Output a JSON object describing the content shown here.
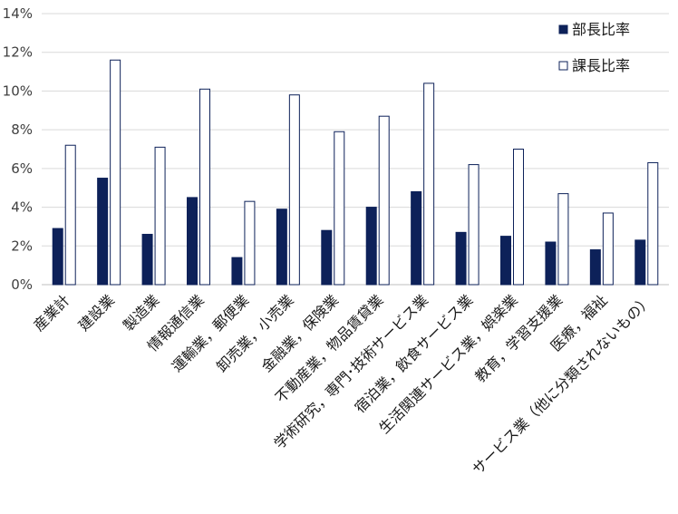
{
  "chart_data": {
    "type": "bar",
    "title": "",
    "xlabel": "",
    "ylabel": "",
    "ylim": [
      0,
      14
    ],
    "yticks": [
      "0%",
      "2%",
      "4%",
      "6%",
      "8%",
      "10%",
      "12%",
      "14%"
    ],
    "grid": true,
    "legend_position": "top-right",
    "categories": [
      "産業計",
      "建設業",
      "製造業",
      "情報通信業",
      "運輸業，郵便業",
      "卸売業，小売業",
      "金融業，保険業",
      "不動産業，物品賃貸業",
      "学術研究，専門･技術サービス業",
      "宿泊業，飲食サービス業",
      "生活関連サービス業，娯楽業",
      "教育，学習支援業",
      "医療，福祉",
      "サービス業（他に分類されないもの）"
    ],
    "series": [
      {
        "name": "部長比率",
        "color": "#0d2159",
        "values": [
          2.9,
          5.5,
          2.6,
          4.5,
          1.4,
          3.9,
          2.8,
          4.0,
          4.8,
          2.7,
          2.5,
          2.2,
          1.8,
          2.3
        ]
      },
      {
        "name": "課長比率",
        "color": "#ffffff",
        "stroke": "#0d2159",
        "values": [
          7.2,
          11.6,
          7.1,
          10.1,
          4.3,
          9.8,
          7.9,
          8.7,
          10.4,
          6.2,
          7.0,
          4.7,
          3.7,
          6.3
        ]
      }
    ]
  }
}
